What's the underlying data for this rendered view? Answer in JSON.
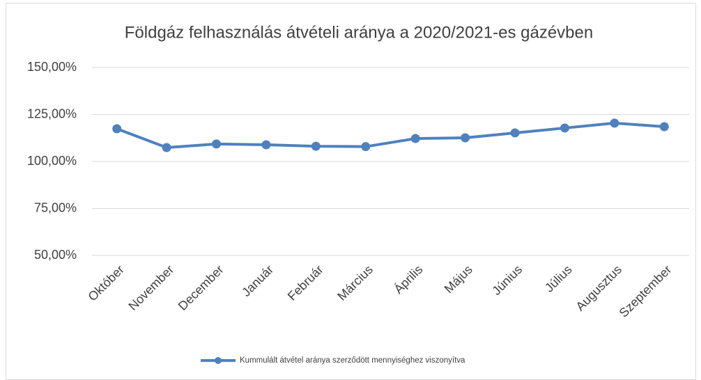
{
  "chart_data": {
    "type": "line",
    "title": "Földgáz felhasználás átvételi aránya a 2020/2021-es gázévben",
    "categories": [
      "Október",
      "November",
      "December",
      "Január",
      "Február",
      "Március",
      "Április",
      "Május",
      "Június",
      "Július",
      "Augusztus",
      "Szeptember"
    ],
    "series": [
      {
        "name": "Kummulált átvétel aránya szerződött mennyiséghez viszonyítva",
        "color": "#4f81bd",
        "values": [
          117.4,
          107.4,
          109.3,
          108.9,
          108.1,
          107.9,
          112.2,
          112.6,
          115.2,
          117.8,
          120.4,
          118.5
        ]
      }
    ],
    "ylim": [
      50,
      150
    ],
    "yticks": [
      {
        "value": 50,
        "label": "50,00%"
      },
      {
        "value": 75,
        "label": "75,00%"
      },
      {
        "value": 100,
        "label": "100,00%"
      },
      {
        "value": 125,
        "label": "125,00%"
      },
      {
        "value": 150,
        "label": "150,00%"
      }
    ],
    "grid": true,
    "legend": "bottom"
  }
}
